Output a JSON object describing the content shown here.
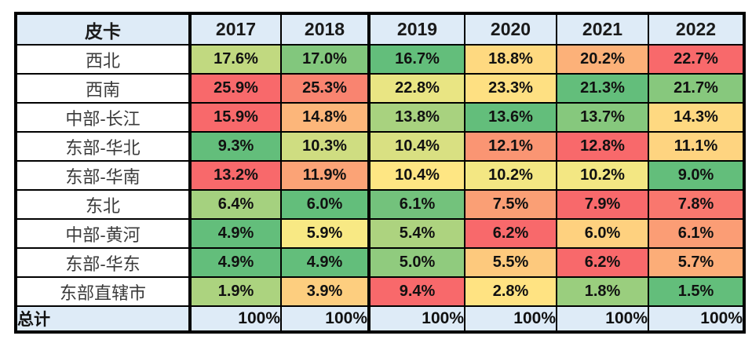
{
  "table": {
    "corner_label": "皮卡",
    "years": [
      "2017",
      "2018",
      "2019",
      "2020",
      "2021",
      "2022"
    ],
    "rows": [
      {
        "label": "西北",
        "cells": [
          {
            "text": "17.6%",
            "bg": "#C1D980"
          },
          {
            "text": "17.0%",
            "bg": "#82C77D"
          },
          {
            "text": "16.7%",
            "bg": "#63BE7B"
          },
          {
            "text": "18.8%",
            "bg": "#FED980"
          },
          {
            "text": "20.2%",
            "bg": "#FCB179"
          },
          {
            "text": "22.7%",
            "bg": "#F8696B"
          }
        ]
      },
      {
        "label": "西南",
        "cells": [
          {
            "text": "25.9%",
            "bg": "#F8696B"
          },
          {
            "text": "25.3%",
            "bg": "#F98470"
          },
          {
            "text": "22.8%",
            "bg": "#E9E583"
          },
          {
            "text": "23.3%",
            "bg": "#FEE082"
          },
          {
            "text": "21.3%",
            "bg": "#63BE7B"
          },
          {
            "text": "21.7%",
            "bg": "#87C87D"
          }
        ]
      },
      {
        "label": "中部-长江",
        "cells": [
          {
            "text": "15.9%",
            "bg": "#F8696B"
          },
          {
            "text": "14.8%",
            "bg": "#FCB67A"
          },
          {
            "text": "13.8%",
            "bg": "#A8D27F"
          },
          {
            "text": "13.6%",
            "bg": "#63BE7B"
          },
          {
            "text": "13.7%",
            "bg": "#86C87D"
          },
          {
            "text": "14.3%",
            "bg": "#FED981"
          }
        ]
      },
      {
        "label": "东部-华北",
        "cells": [
          {
            "text": "9.3%",
            "bg": "#63BE7B"
          },
          {
            "text": "10.3%",
            "bg": "#CFDD81"
          },
          {
            "text": "10.4%",
            "bg": "#D9E082"
          },
          {
            "text": "12.1%",
            "bg": "#FA9573"
          },
          {
            "text": "12.8%",
            "bg": "#F8696B"
          },
          {
            "text": "11.1%",
            "bg": "#FED480"
          }
        ]
      },
      {
        "label": "东部-华南",
        "cells": [
          {
            "text": "13.2%",
            "bg": "#F8696B"
          },
          {
            "text": "11.9%",
            "bg": "#FBA376"
          },
          {
            "text": "10.4%",
            "bg": "#FEE683"
          },
          {
            "text": "10.2%",
            "bg": "#F3E783"
          },
          {
            "text": "10.2%",
            "bg": "#F3E783"
          },
          {
            "text": "9.0%",
            "bg": "#63BE7B"
          }
        ]
      },
      {
        "label": "东北",
        "cells": [
          {
            "text": "6.4%",
            "bg": "#A5D17F"
          },
          {
            "text": "6.0%",
            "bg": "#63BE7B"
          },
          {
            "text": "6.1%",
            "bg": "#73C27C"
          },
          {
            "text": "7.5%",
            "bg": "#FA9F75"
          },
          {
            "text": "7.9%",
            "bg": "#F8696B"
          },
          {
            "text": "7.8%",
            "bg": "#F9776E"
          }
        ]
      },
      {
        "label": "中部-黄河",
        "cells": [
          {
            "text": "4.9%",
            "bg": "#63BE7B"
          },
          {
            "text": "5.9%",
            "bg": "#F8E984"
          },
          {
            "text": "5.4%",
            "bg": "#ADD37F"
          },
          {
            "text": "6.2%",
            "bg": "#F8696B"
          },
          {
            "text": "6.0%",
            "bg": "#FED17F"
          },
          {
            "text": "6.1%",
            "bg": "#FB9D75"
          }
        ]
      },
      {
        "label": "东部-华东",
        "cells": [
          {
            "text": "4.9%",
            "bg": "#63BE7B"
          },
          {
            "text": "4.9%",
            "bg": "#63BE7B"
          },
          {
            "text": "5.0%",
            "bg": "#90CB7E"
          },
          {
            "text": "5.5%",
            "bg": "#FDC97D"
          },
          {
            "text": "6.2%",
            "bg": "#F8696B"
          },
          {
            "text": "5.7%",
            "bg": "#FCAD78"
          }
        ]
      },
      {
        "label": "东部直辖市",
        "cells": [
          {
            "text": "1.9%",
            "bg": "#ACD37F"
          },
          {
            "text": "3.9%",
            "bg": "#FDCE7F"
          },
          {
            "text": "9.4%",
            "bg": "#F8696B"
          },
          {
            "text": "2.8%",
            "bg": "#FFE382"
          },
          {
            "text": "1.8%",
            "bg": "#9ACE7E"
          },
          {
            "text": "1.5%",
            "bg": "#63BE7B"
          }
        ]
      },
      {
        "label": "总计",
        "is_total": true,
        "cells": [
          {
            "text": "100%",
            "bg": "#DEEBF7"
          },
          {
            "text": "100%",
            "bg": "#DEEBF7"
          },
          {
            "text": "100%",
            "bg": "#DEEBF7"
          },
          {
            "text": "100%",
            "bg": "#DEEBF7"
          },
          {
            "text": "100%",
            "bg": "#DEEBF7"
          },
          {
            "text": "100%",
            "bg": "#DEEBF7"
          }
        ]
      }
    ]
  },
  "colors": {
    "header_bg": "#DEEBF7",
    "total_bg": "#DEEBF7",
    "label_bg": "#FFFFFF",
    "border": "#000000",
    "scale_min_green": "#63BE7B",
    "scale_mid_yellow": "#FFEB84",
    "scale_max_red": "#F8696B"
  },
  "chart_data": {
    "type": "heatmap",
    "title": "皮卡",
    "columns": [
      "2017",
      "2018",
      "2019",
      "2020",
      "2021",
      "2022"
    ],
    "row_labels": [
      "西北",
      "西南",
      "中部-长江",
      "东部-华北",
      "东部-华南",
      "东北",
      "中部-黄河",
      "东部-华东",
      "东部直辖市",
      "总计"
    ],
    "unit": "%",
    "values": [
      [
        17.6,
        17.0,
        16.7,
        18.8,
        20.2,
        22.7
      ],
      [
        25.9,
        25.3,
        22.8,
        23.3,
        21.3,
        21.7
      ],
      [
        15.9,
        14.8,
        13.8,
        13.6,
        13.7,
        14.3
      ],
      [
        9.3,
        10.3,
        10.4,
        12.1,
        12.8,
        11.1
      ],
      [
        13.2,
        11.9,
        10.4,
        10.2,
        10.2,
        9.0
      ],
      [
        6.4,
        6.0,
        6.1,
        7.5,
        7.9,
        7.8
      ],
      [
        4.9,
        5.9,
        5.4,
        6.2,
        6.0,
        6.1
      ],
      [
        4.9,
        4.9,
        5.0,
        5.5,
        6.2,
        5.7
      ],
      [
        1.9,
        3.9,
        9.4,
        2.8,
        1.8,
        1.5
      ],
      [
        100,
        100,
        100,
        100,
        100,
        100
      ]
    ],
    "color_rule": "per-row 3-color scale: row min = green #63BE7B, row median = yellow #FFEB84, row max = red #F8696B; total row is plain light blue",
    "layout": "first column = region labels (white bg), header row and total row light blue; thick black dividers after label column and after 2018 column"
  }
}
